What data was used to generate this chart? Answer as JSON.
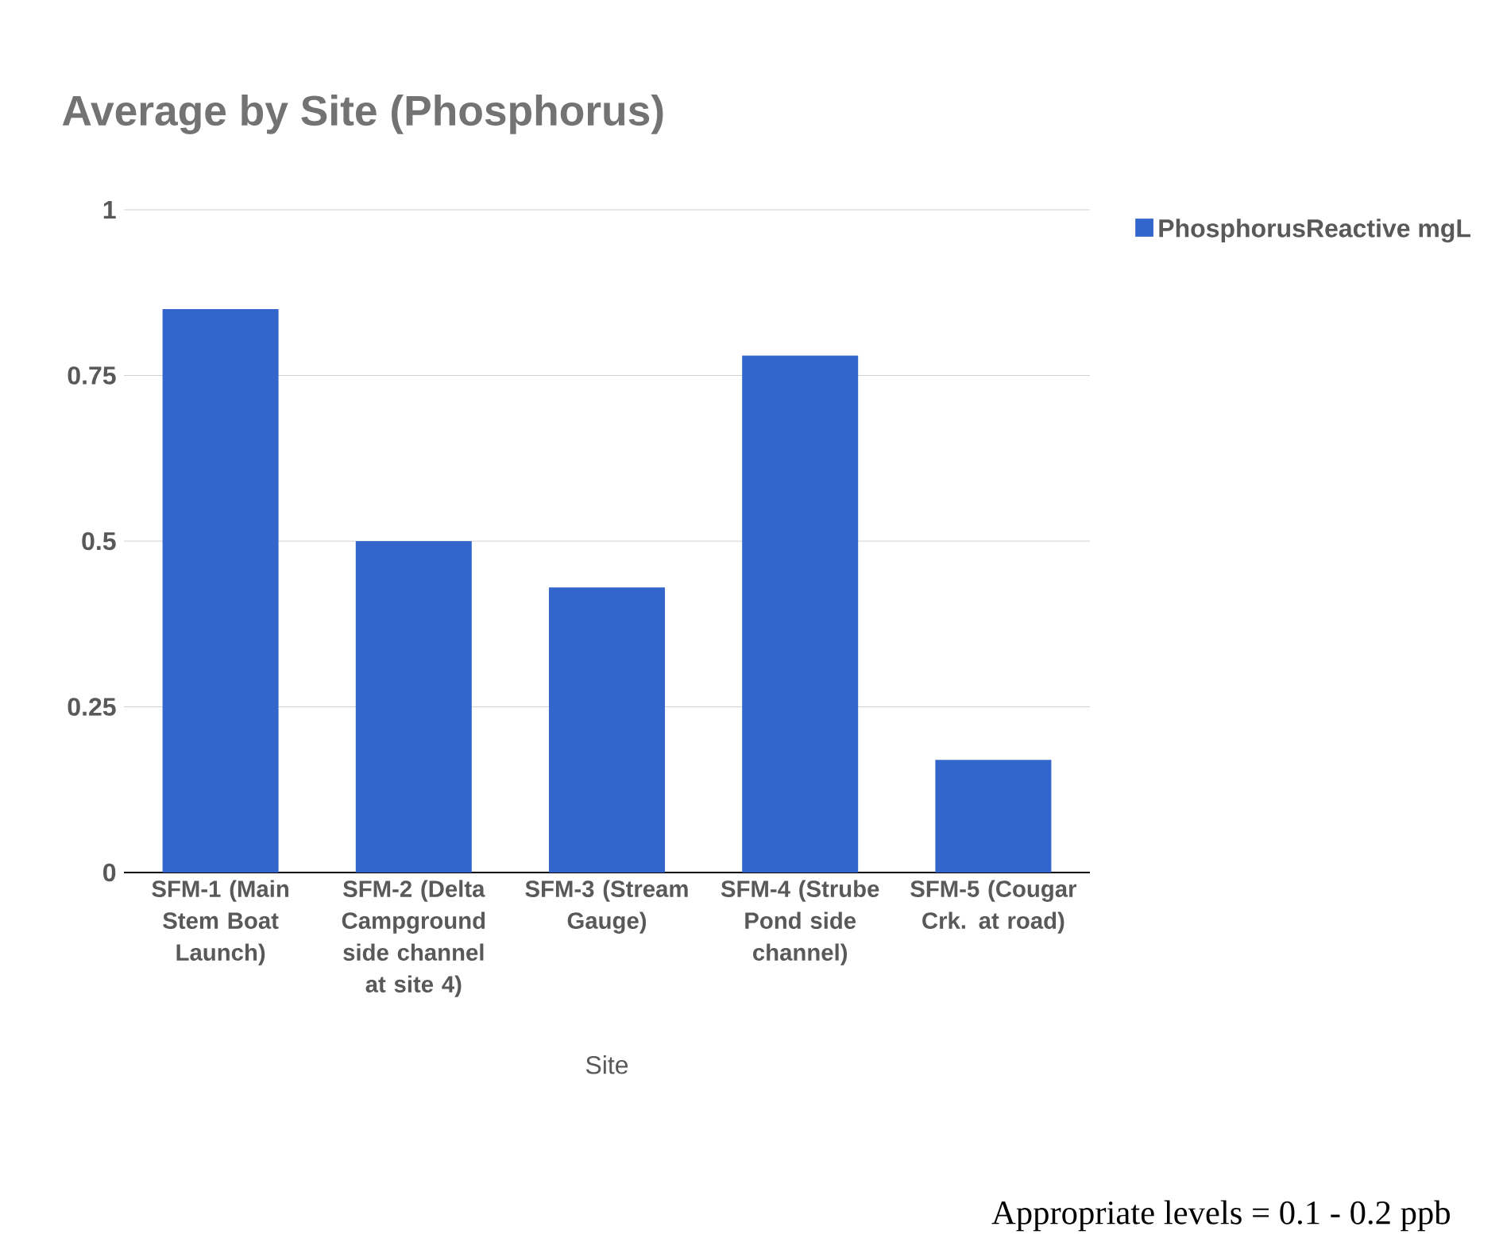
{
  "chart_data": {
    "type": "bar",
    "title": "Average by Site (Phosphorus)",
    "xlabel": "Site",
    "categories": [
      "SFM-1 (Main Stem Boat Launch)",
      "SFM-2 (Delta Campground side channel at site 4)",
      "SFM-3 (Stream Gauge)",
      "SFM-4 (Strube Pond side channel)",
      "SFM-5 (Cougar Crk. at road)"
    ],
    "series": [
      {
        "name": "PhosphorusReactive mgL",
        "color": "#3366cc",
        "values": [
          0.85,
          0.5,
          0.43,
          0.78,
          0.17
        ]
      }
    ],
    "ylim": [
      0,
      1
    ],
    "yticks": [
      0,
      0.25,
      0.5,
      0.75,
      1
    ],
    "grid": "y",
    "legend": "top right",
    "annotations": [
      "Appropriate levels = 0.1 - 0.2 ppb"
    ]
  }
}
